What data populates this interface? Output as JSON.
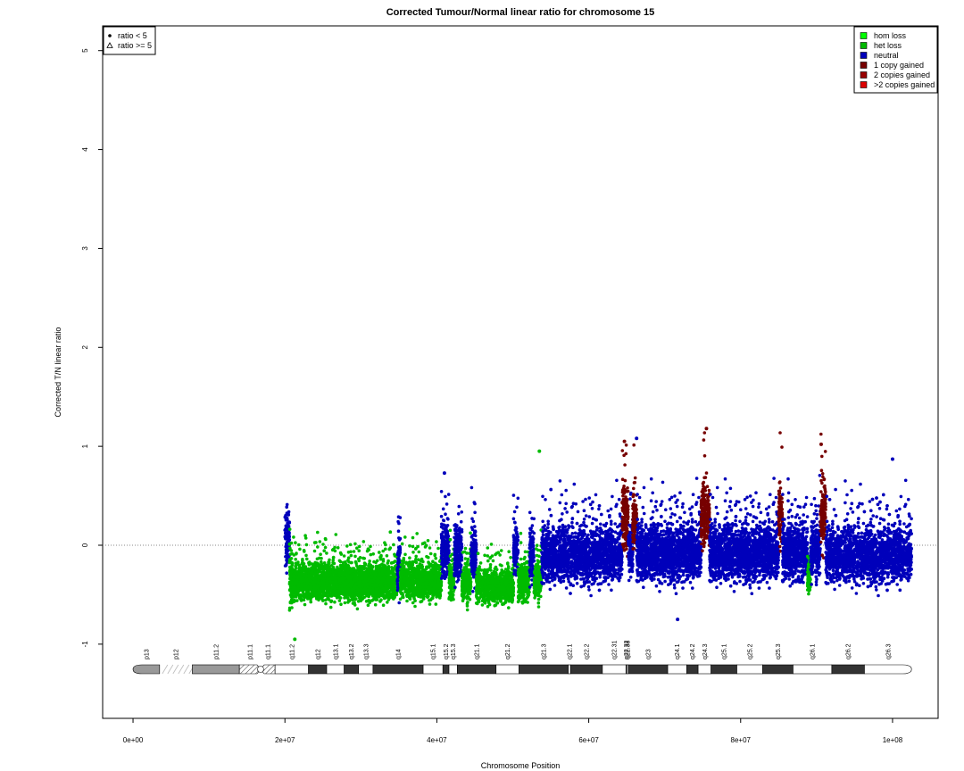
{
  "chart_data": {
    "type": "scatter",
    "title": "Corrected Tumour/Normal linear ratio for chromosome  15",
    "xlabel": "Chromosome Position",
    "ylabel": "Corrected T/N linear ratio",
    "xlim": [
      -4000000,
      106000000
    ],
    "ylim": [
      -1.75,
      5.25
    ],
    "x_ticks": [
      0,
      20000000,
      40000000,
      60000000,
      80000000,
      100000000
    ],
    "x_tick_labels": [
      "0e+00",
      "2e+07",
      "4e+07",
      "6e+07",
      "8e+07",
      "1e+08"
    ],
    "y_ticks": [
      -1,
      0,
      1,
      2,
      3,
      4,
      5
    ],
    "y_tick_labels": [
      "-1",
      "0",
      "1",
      "2",
      "3",
      "4",
      "5"
    ],
    "reference_line_y": 0,
    "shape_legend": {
      "position": "top-left",
      "entries": [
        {
          "symbol": "circle",
          "label": "ratio < 5"
        },
        {
          "symbol": "triangle",
          "label": "ratio >= 5"
        }
      ]
    },
    "color_legend": {
      "position": "top-right",
      "entries": [
        {
          "label": "hom loss",
          "color": "#00ff00"
        },
        {
          "label": "het loss",
          "color": "#00bb00"
        },
        {
          "label": "neutral",
          "color": "#0000bb"
        },
        {
          "label": "1 copy gained",
          "color": "#770000"
        },
        {
          "label": "2 copies gained",
          "color": "#990000"
        },
        {
          "label": ">2 copies gained",
          "color": "#dd0000"
        }
      ]
    },
    "segments": [
      {
        "state": "neutral",
        "x_start": 20000000,
        "x_end": 20600000,
        "median": 0.05,
        "spread": 0.28
      },
      {
        "state": "het loss",
        "x_start": 20600000,
        "x_end": 21200000,
        "median": -0.35,
        "spread": 0.28
      },
      {
        "state": "het loss",
        "x_start": 21200000,
        "x_end": 34800000,
        "median": -0.37,
        "spread": 0.2
      },
      {
        "state": "neutral",
        "x_start": 34800000,
        "x_end": 35200000,
        "median": -0.2,
        "spread": 0.28
      },
      {
        "state": "het loss",
        "x_start": 35200000,
        "x_end": 40600000,
        "median": -0.36,
        "spread": 0.2
      },
      {
        "state": "neutral",
        "x_start": 40600000,
        "x_end": 41600000,
        "median": -0.05,
        "spread": 0.3
      },
      {
        "state": "het loss",
        "x_start": 41600000,
        "x_end": 42300000,
        "median": -0.35,
        "spread": 0.2
      },
      {
        "state": "neutral",
        "x_start": 42300000,
        "x_end": 43300000,
        "median": -0.08,
        "spread": 0.3
      },
      {
        "state": "het loss",
        "x_start": 43300000,
        "x_end": 44500000,
        "median": -0.38,
        "spread": 0.2
      },
      {
        "state": "neutral",
        "x_start": 44500000,
        "x_end": 45200000,
        "median": -0.08,
        "spread": 0.3
      },
      {
        "state": "het loss",
        "x_start": 45200000,
        "x_end": 50100000,
        "median": -0.42,
        "spread": 0.18
      },
      {
        "state": "neutral",
        "x_start": 50100000,
        "x_end": 50700000,
        "median": -0.05,
        "spread": 0.28
      },
      {
        "state": "het loss",
        "x_start": 50700000,
        "x_end": 52200000,
        "median": -0.38,
        "spread": 0.2
      },
      {
        "state": "neutral",
        "x_start": 52200000,
        "x_end": 52800000,
        "median": -0.1,
        "spread": 0.28
      },
      {
        "state": "het loss",
        "x_start": 52800000,
        "x_end": 53800000,
        "median": -0.35,
        "spread": 0.2
      },
      {
        "state": "neutral",
        "x_start": 53800000,
        "x_end": 64400000,
        "median": -0.1,
        "spread": 0.3
      },
      {
        "state": "1 copy gained",
        "x_start": 64400000,
        "x_end": 65200000,
        "median": 0.3,
        "spread": 0.35
      },
      {
        "state": "neutral",
        "x_start": 65200000,
        "x_end": 65800000,
        "median": -0.05,
        "spread": 0.3
      },
      {
        "state": "1 copy gained",
        "x_start": 65800000,
        "x_end": 66300000,
        "median": 0.25,
        "spread": 0.35
      },
      {
        "state": "neutral",
        "x_start": 66300000,
        "x_end": 74800000,
        "median": -0.08,
        "spread": 0.3
      },
      {
        "state": "1 copy gained",
        "x_start": 74800000,
        "x_end": 75900000,
        "median": 0.3,
        "spread": 0.35
      },
      {
        "state": "neutral",
        "x_start": 75900000,
        "x_end": 85000000,
        "median": -0.08,
        "spread": 0.3
      },
      {
        "state": "1 copy gained",
        "x_start": 85000000,
        "x_end": 85500000,
        "median": 0.3,
        "spread": 0.35
      },
      {
        "state": "neutral",
        "x_start": 85500000,
        "x_end": 88800000,
        "median": -0.08,
        "spread": 0.3
      },
      {
        "state": "het loss",
        "x_start": 88800000,
        "x_end": 89200000,
        "median": -0.3,
        "spread": 0.2
      },
      {
        "state": "neutral",
        "x_start": 89200000,
        "x_end": 90500000,
        "median": -0.05,
        "spread": 0.3
      },
      {
        "state": "1 copy gained",
        "x_start": 90500000,
        "x_end": 91200000,
        "median": 0.35,
        "spread": 0.35
      },
      {
        "state": "neutral",
        "x_start": 91200000,
        "x_end": 102500000,
        "median": -0.1,
        "spread": 0.3
      }
    ],
    "outliers": [
      {
        "x": 41000000,
        "y": 0.73
      },
      {
        "x": 53500000,
        "y": 0.95
      },
      {
        "x": 64700000,
        "y": 1.05
      },
      {
        "x": 66300000,
        "y": 1.08
      },
      {
        "x": 75500000,
        "y": 1.18
      },
      {
        "x": 90600000,
        "y": 1.02
      },
      {
        "x": 100000000,
        "y": 0.87
      },
      {
        "x": 71700000,
        "y": -0.75
      },
      {
        "x": 21300000,
        "y": -0.95
      }
    ],
    "cytobands": [
      {
        "name": "p13",
        "start": 0,
        "end": 3500000,
        "stain": "acen_p_arm"
      },
      {
        "name": "p12",
        "start": 3500000,
        "end": 7800000,
        "stain": "stalk"
      },
      {
        "name": "p11.2",
        "start": 7800000,
        "end": 14000000,
        "stain": "gpos50"
      },
      {
        "name": "p11.1",
        "start": 14000000,
        "end": 16800000,
        "stain": "hatched"
      },
      {
        "name": "q11.1",
        "start": 16800000,
        "end": 18700000,
        "stain": "hatched"
      },
      {
        "name": "q11.2",
        "start": 18700000,
        "end": 23100000,
        "stain": "gneg"
      },
      {
        "name": "q12",
        "start": 23100000,
        "end": 25500000,
        "stain": "gpos100"
      },
      {
        "name": "q13.1",
        "start": 25500000,
        "end": 27800000,
        "stain": "gneg"
      },
      {
        "name": "q13.2",
        "start": 27800000,
        "end": 29700000,
        "stain": "gpos100"
      },
      {
        "name": "q13.3",
        "start": 29700000,
        "end": 31600000,
        "stain": "gneg"
      },
      {
        "name": "q14",
        "start": 31600000,
        "end": 38200000,
        "stain": "gpos100"
      },
      {
        "name": "q15.1",
        "start": 38200000,
        "end": 40800000,
        "stain": "gneg"
      },
      {
        "name": "q15.2",
        "start": 40800000,
        "end": 41600000,
        "stain": "gpos100"
      },
      {
        "name": "q15.3",
        "start": 41600000,
        "end": 42700000,
        "stain": "gneg"
      },
      {
        "name": "q21.1",
        "start": 42700000,
        "end": 47800000,
        "stain": "gpos100"
      },
      {
        "name": "q21.2",
        "start": 47800000,
        "end": 50800000,
        "stain": "gneg"
      },
      {
        "name": "q21.3",
        "start": 50800000,
        "end": 57300000,
        "stain": "gpos100"
      },
      {
        "name": "q22.1",
        "start": 57300000,
        "end": 57600000,
        "stain": "gneg"
      },
      {
        "name": "q22.2",
        "start": 57600000,
        "end": 61800000,
        "stain": "gpos100"
      },
      {
        "name": "q22.31",
        "start": 61800000,
        "end": 64900000,
        "stain": "gneg"
      },
      {
        "name": "q22.32",
        "start": 64900000,
        "end": 65000000,
        "stain": "gpos100"
      },
      {
        "name": "q22.33",
        "start": 65000000,
        "end": 65200000,
        "stain": "gneg"
      },
      {
        "name": "q23",
        "start": 65200000,
        "end": 70400000,
        "stain": "gpos100"
      },
      {
        "name": "q24.1",
        "start": 70400000,
        "end": 72900000,
        "stain": "gneg"
      },
      {
        "name": "q24.2",
        "start": 72900000,
        "end": 74400000,
        "stain": "gpos100"
      },
      {
        "name": "q24.3",
        "start": 74400000,
        "end": 76100000,
        "stain": "gneg"
      },
      {
        "name": "q25.1",
        "start": 76100000,
        "end": 79500000,
        "stain": "gpos100"
      },
      {
        "name": "q25.2",
        "start": 79500000,
        "end": 82900000,
        "stain": "gneg"
      },
      {
        "name": "q25.3",
        "start": 82900000,
        "end": 86900000,
        "stain": "gpos100"
      },
      {
        "name": "q26.1",
        "start": 86900000,
        "end": 92000000,
        "stain": "gneg"
      },
      {
        "name": "q26.2",
        "start": 92000000,
        "end": 96300000,
        "stain": "gpos100"
      },
      {
        "name": "q26.3",
        "start": 96300000,
        "end": 102500000,
        "stain": "gneg_tel"
      }
    ],
    "grid": false
  }
}
